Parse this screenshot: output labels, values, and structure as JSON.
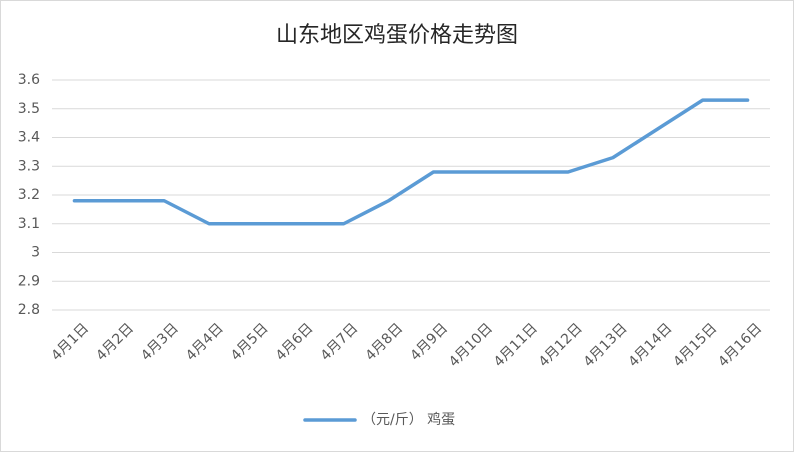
{
  "chart_data": {
    "type": "line",
    "title": "山东地区鸡蛋价格走势图",
    "categories": [
      "4月1日",
      "4月2日",
      "4月3日",
      "4月4日",
      "4月5日",
      "4月6日",
      "4月7日",
      "4月8日",
      "4月9日",
      "4月10日",
      "4月11日",
      "4月12日",
      "4月13日",
      "4月14日",
      "4月15日",
      "4月16日"
    ],
    "series": [
      {
        "name": "（元/斤）  鸡蛋",
        "color": "#5b9bd5",
        "values": [
          3.18,
          3.18,
          3.18,
          3.1,
          3.1,
          3.1,
          3.1,
          3.18,
          3.28,
          3.28,
          3.28,
          3.28,
          3.33,
          3.43,
          3.53,
          3.53
        ]
      }
    ],
    "ylim": [
      2.8,
      3.6
    ],
    "yticks": [
      2.8,
      2.9,
      3,
      3.1,
      3.2,
      3.3,
      3.4,
      3.5,
      3.6
    ],
    "grid": true,
    "legend": "bottom"
  }
}
